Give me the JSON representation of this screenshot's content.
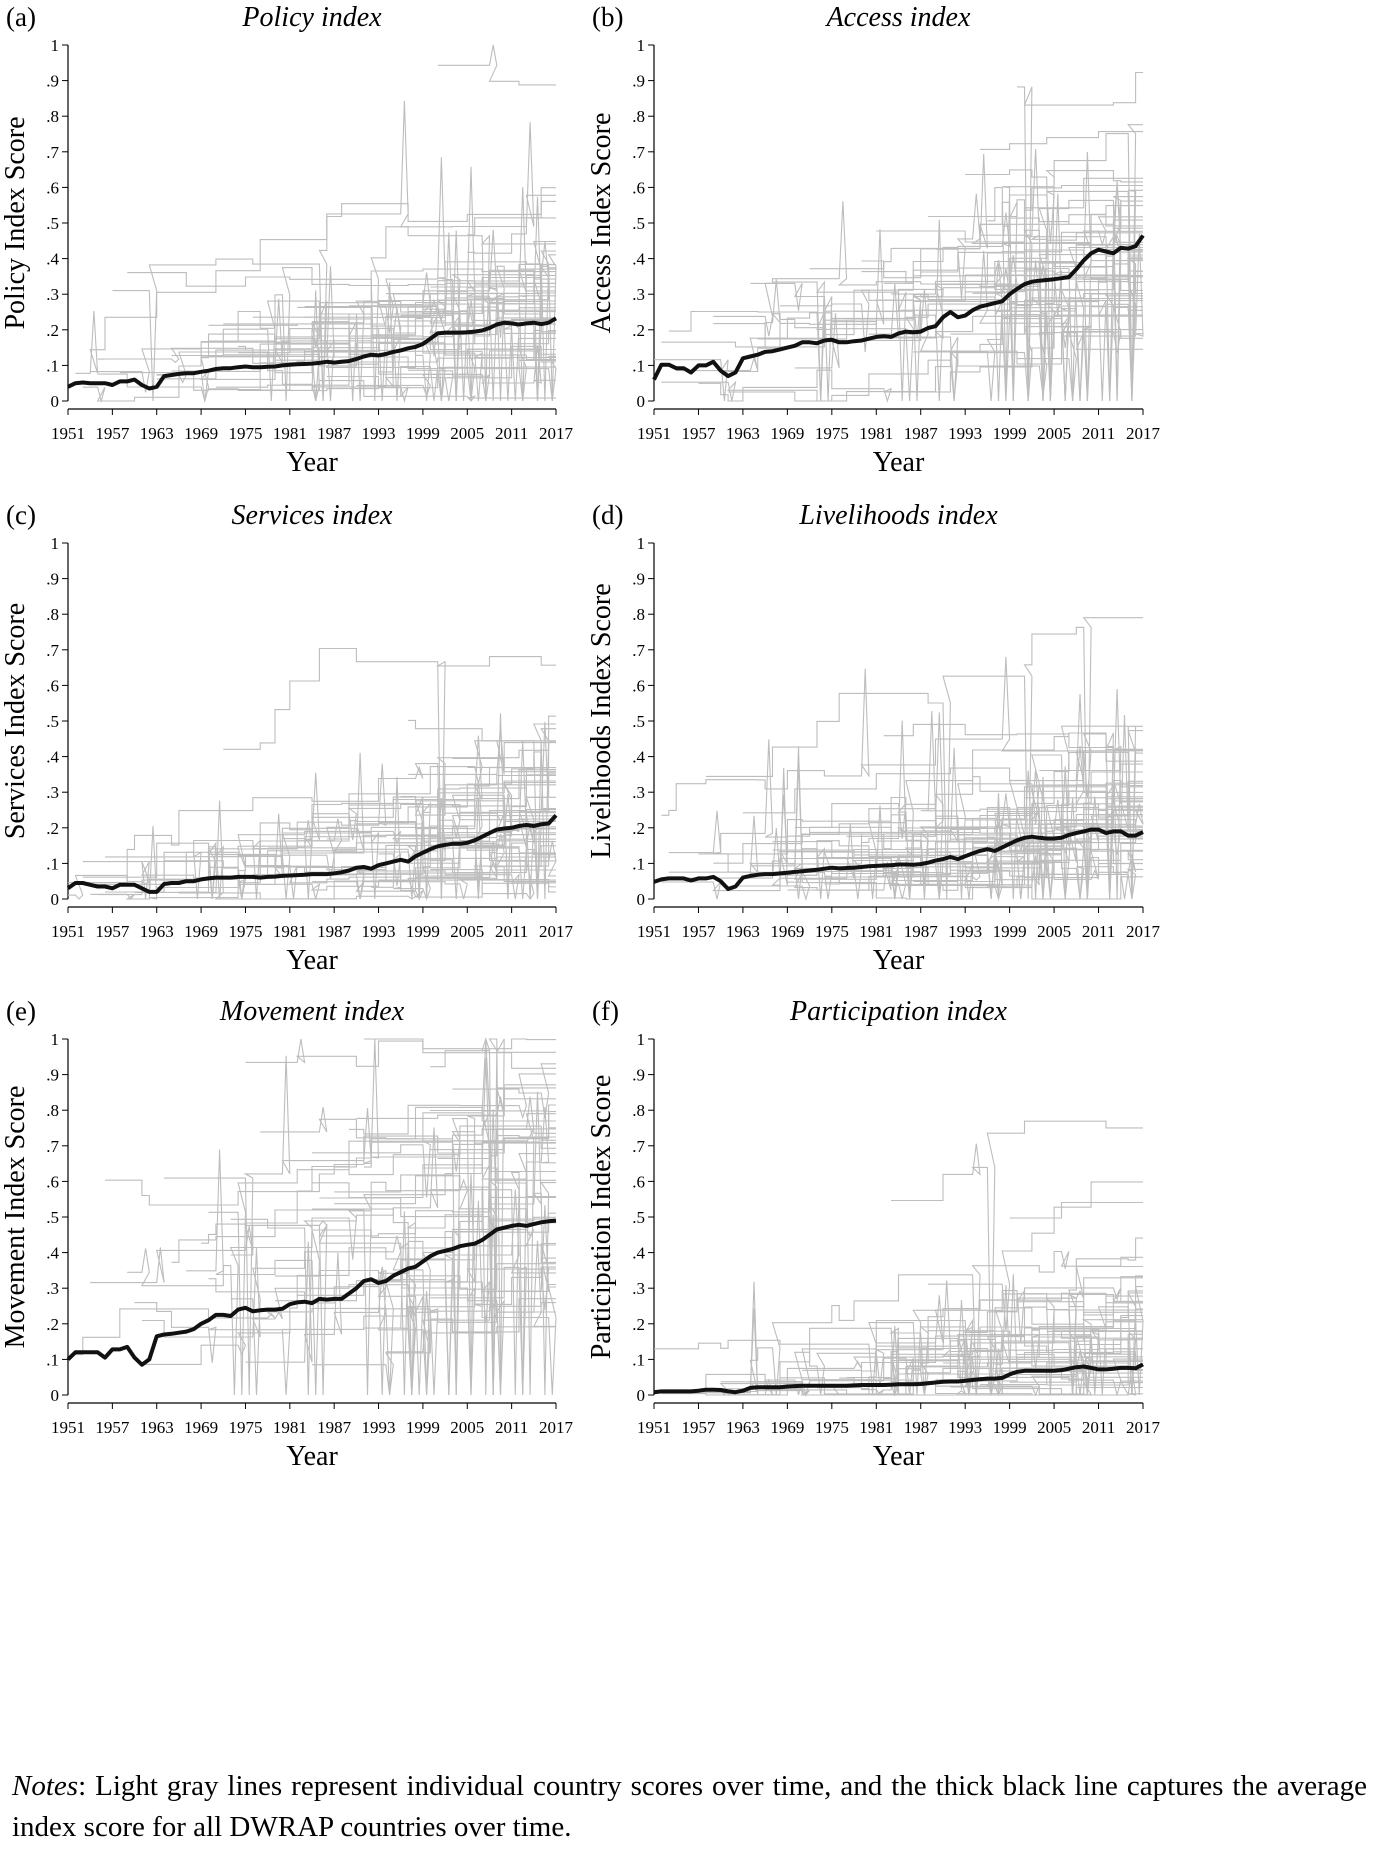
{
  "figure": {
    "x_axis_title": "Year",
    "x_ticks": [
      1951,
      1957,
      1963,
      1969,
      1975,
      1981,
      1987,
      1993,
      1999,
      2005,
      2011,
      2017
    ],
    "y_ticks": [
      "0",
      ".1",
      ".2",
      ".3",
      ".4",
      ".5",
      ".6",
      ".7",
      ".8",
      ".9",
      "1"
    ],
    "background_line_color": "#bdbdbd",
    "average_line_color": "#111111"
  },
  "notes": {
    "label": "Notes",
    "text": ": Light gray lines represent individual country scores over time, and the thick black line captures the average index score for all DWRAP countries over time."
  },
  "chart_data": [
    {
      "panel": "(a)",
      "type": "line",
      "title": "Policy index",
      "xlabel": "Year",
      "ylabel": "Policy Index Score",
      "xlim": [
        1951,
        2017
      ],
      "ylim": [
        0,
        1
      ],
      "grid": false,
      "legend": "none",
      "series": [
        {
          "x": [
            1951,
            1952,
            1953,
            1954,
            1955,
            1956,
            1957,
            1958,
            1959,
            1960,
            1961,
            1962,
            1963,
            1964,
            1965,
            1966,
            1967,
            1968,
            1969,
            1970,
            1971,
            1972,
            1973,
            1974,
            1975,
            1976,
            1977,
            1978,
            1979,
            1980,
            1981,
            1982,
            1983,
            1984,
            1985,
            1986,
            1987,
            1988,
            1989,
            1990,
            1991,
            1992,
            1993,
            1994,
            1995,
            1996,
            1997,
            1998,
            1999,
            2000,
            2001,
            2002,
            2003,
            2004,
            2005,
            2006,
            2007,
            2008,
            2009,
            2010,
            2011,
            2012,
            2013,
            2014,
            2015,
            2016,
            2017
          ],
          "values": [
            0.04,
            0.05,
            0.052,
            0.05,
            0.05,
            0.05,
            0.045,
            0.055,
            0.055,
            0.06,
            0.045,
            0.035,
            0.04,
            0.07,
            0.073,
            0.076,
            0.078,
            0.078,
            0.082,
            0.085,
            0.09,
            0.092,
            0.092,
            0.095,
            0.097,
            0.095,
            0.095,
            0.096,
            0.097,
            0.1,
            0.102,
            0.103,
            0.104,
            0.105,
            0.107,
            0.11,
            0.108,
            0.11,
            0.112,
            0.118,
            0.125,
            0.13,
            0.128,
            0.132,
            0.138,
            0.142,
            0.148,
            0.152,
            0.16,
            0.175,
            0.19,
            0.192,
            0.192,
            0.192,
            0.193,
            0.195,
            0.198,
            0.205,
            0.215,
            0.22,
            0.218,
            0.215,
            0.218,
            0.22,
            0.216,
            0.22,
            0.232
          ]
        }
      ]
    },
    {
      "panel": "(b)",
      "type": "line",
      "title": "Access index",
      "xlabel": "Year",
      "ylabel": "Access Index Score",
      "xlim": [
        1951,
        2017
      ],
      "ylim": [
        0,
        1
      ],
      "grid": false,
      "legend": "none",
      "series": [
        {
          "x": [
            1951,
            1952,
            1953,
            1954,
            1955,
            1956,
            1957,
            1958,
            1959,
            1960,
            1961,
            1962,
            1963,
            1964,
            1965,
            1966,
            1967,
            1968,
            1969,
            1970,
            1971,
            1972,
            1973,
            1974,
            1975,
            1976,
            1977,
            1978,
            1979,
            1980,
            1981,
            1982,
            1983,
            1984,
            1985,
            1986,
            1987,
            1988,
            1989,
            1990,
            1991,
            1992,
            1993,
            1994,
            1995,
            1996,
            1997,
            1998,
            1999,
            2000,
            2001,
            2002,
            2003,
            2004,
            2005,
            2006,
            2007,
            2008,
            2009,
            2010,
            2011,
            2012,
            2013,
            2014,
            2015,
            2016,
            2017
          ],
          "values": [
            0.06,
            0.102,
            0.102,
            0.092,
            0.092,
            0.08,
            0.1,
            0.1,
            0.11,
            0.085,
            0.07,
            0.08,
            0.12,
            0.125,
            0.13,
            0.138,
            0.14,
            0.145,
            0.15,
            0.155,
            0.165,
            0.165,
            0.162,
            0.17,
            0.172,
            0.165,
            0.165,
            0.168,
            0.17,
            0.175,
            0.18,
            0.182,
            0.18,
            0.19,
            0.195,
            0.193,
            0.195,
            0.205,
            0.21,
            0.235,
            0.25,
            0.235,
            0.24,
            0.255,
            0.265,
            0.27,
            0.275,
            0.28,
            0.3,
            0.315,
            0.328,
            0.335,
            0.338,
            0.34,
            0.342,
            0.345,
            0.348,
            0.37,
            0.395,
            0.415,
            0.425,
            0.42,
            0.415,
            0.43,
            0.428,
            0.435,
            0.465
          ]
        }
      ]
    },
    {
      "panel": "(c)",
      "type": "line",
      "title": "Services index",
      "xlabel": "Year",
      "ylabel": "Services Index Score",
      "xlim": [
        1951,
        2017
      ],
      "ylim": [
        0,
        1
      ],
      "grid": false,
      "legend": "none",
      "series": [
        {
          "x": [
            1951,
            1952,
            1953,
            1954,
            1955,
            1956,
            1957,
            1958,
            1959,
            1960,
            1961,
            1962,
            1963,
            1964,
            1965,
            1966,
            1967,
            1968,
            1969,
            1970,
            1971,
            1972,
            1973,
            1974,
            1975,
            1976,
            1977,
            1978,
            1979,
            1980,
            1981,
            1982,
            1983,
            1984,
            1985,
            1986,
            1987,
            1988,
            1989,
            1990,
            1991,
            1992,
            1993,
            1994,
            1995,
            1996,
            1997,
            1998,
            1999,
            2000,
            2001,
            2002,
            2003,
            2004,
            2005,
            2006,
            2007,
            2008,
            2009,
            2010,
            2011,
            2012,
            2013,
            2014,
            2015,
            2016,
            2017
          ],
          "values": [
            0.03,
            0.045,
            0.045,
            0.04,
            0.035,
            0.035,
            0.03,
            0.04,
            0.04,
            0.04,
            0.03,
            0.02,
            0.02,
            0.042,
            0.045,
            0.045,
            0.05,
            0.05,
            0.055,
            0.058,
            0.06,
            0.06,
            0.06,
            0.062,
            0.062,
            0.062,
            0.06,
            0.062,
            0.063,
            0.065,
            0.066,
            0.067,
            0.068,
            0.07,
            0.07,
            0.07,
            0.072,
            0.075,
            0.08,
            0.088,
            0.09,
            0.085,
            0.095,
            0.1,
            0.105,
            0.11,
            0.105,
            0.12,
            0.13,
            0.14,
            0.148,
            0.152,
            0.155,
            0.155,
            0.158,
            0.165,
            0.175,
            0.185,
            0.195,
            0.198,
            0.2,
            0.205,
            0.208,
            0.205,
            0.21,
            0.212,
            0.235
          ]
        }
      ]
    },
    {
      "panel": "(d)",
      "type": "line",
      "title": "Livelihoods index",
      "xlabel": "Year",
      "ylabel": "Livelihoods Index Score",
      "xlim": [
        1951,
        2017
      ],
      "ylim": [
        0,
        1
      ],
      "grid": false,
      "legend": "none",
      "series": [
        {
          "x": [
            1951,
            1952,
            1953,
            1954,
            1955,
            1956,
            1957,
            1958,
            1959,
            1960,
            1961,
            1962,
            1963,
            1964,
            1965,
            1966,
            1967,
            1968,
            1969,
            1970,
            1971,
            1972,
            1973,
            1974,
            1975,
            1976,
            1977,
            1978,
            1979,
            1980,
            1981,
            1982,
            1983,
            1984,
            1985,
            1986,
            1987,
            1988,
            1989,
            1990,
            1991,
            1992,
            1993,
            1994,
            1995,
            1996,
            1997,
            1998,
            1999,
            2000,
            2001,
            2002,
            2003,
            2004,
            2005,
            2006,
            2007,
            2008,
            2009,
            2010,
            2011,
            2012,
            2013,
            2014,
            2015,
            2016,
            2017
          ],
          "values": [
            0.048,
            0.055,
            0.058,
            0.058,
            0.058,
            0.052,
            0.058,
            0.058,
            0.062,
            0.05,
            0.028,
            0.035,
            0.06,
            0.065,
            0.068,
            0.07,
            0.07,
            0.072,
            0.074,
            0.076,
            0.078,
            0.08,
            0.082,
            0.085,
            0.088,
            0.086,
            0.087,
            0.088,
            0.09,
            0.092,
            0.093,
            0.094,
            0.095,
            0.097,
            0.097,
            0.096,
            0.098,
            0.102,
            0.108,
            0.112,
            0.118,
            0.112,
            0.12,
            0.128,
            0.135,
            0.14,
            0.135,
            0.145,
            0.155,
            0.165,
            0.172,
            0.175,
            0.172,
            0.17,
            0.17,
            0.172,
            0.18,
            0.185,
            0.19,
            0.195,
            0.195,
            0.185,
            0.19,
            0.19,
            0.178,
            0.178,
            0.188
          ]
        }
      ]
    },
    {
      "panel": "(e)",
      "type": "line",
      "title": "Movement index",
      "xlabel": "Year",
      "ylabel": "Movement Index Score",
      "xlim": [
        1951,
        2017
      ],
      "ylim": [
        0,
        1
      ],
      "grid": false,
      "legend": "none",
      "series": [
        {
          "x": [
            1951,
            1952,
            1953,
            1954,
            1955,
            1956,
            1957,
            1958,
            1959,
            1960,
            1961,
            1962,
            1963,
            1964,
            1965,
            1966,
            1967,
            1968,
            1969,
            1970,
            1971,
            1972,
            1973,
            1974,
            1975,
            1976,
            1977,
            1978,
            1979,
            1980,
            1981,
            1982,
            1983,
            1984,
            1985,
            1986,
            1987,
            1988,
            1989,
            1990,
            1991,
            1992,
            1993,
            1994,
            1995,
            1996,
            1997,
            1998,
            1999,
            2000,
            2001,
            2002,
            2003,
            2004,
            2005,
            2006,
            2007,
            2008,
            2009,
            2010,
            2011,
            2012,
            2013,
            2014,
            2015,
            2016,
            2017
          ],
          "values": [
            0.1,
            0.12,
            0.12,
            0.12,
            0.12,
            0.105,
            0.128,
            0.128,
            0.135,
            0.105,
            0.085,
            0.1,
            0.165,
            0.17,
            0.172,
            0.175,
            0.178,
            0.185,
            0.2,
            0.21,
            0.225,
            0.225,
            0.222,
            0.24,
            0.245,
            0.235,
            0.238,
            0.24,
            0.24,
            0.242,
            0.255,
            0.26,
            0.262,
            0.258,
            0.27,
            0.268,
            0.27,
            0.27,
            0.285,
            0.3,
            0.32,
            0.325,
            0.315,
            0.32,
            0.335,
            0.345,
            0.355,
            0.36,
            0.375,
            0.39,
            0.4,
            0.405,
            0.41,
            0.418,
            0.422,
            0.425,
            0.435,
            0.45,
            0.465,
            0.47,
            0.475,
            0.478,
            0.475,
            0.48,
            0.485,
            0.488,
            0.49
          ]
        }
      ]
    },
    {
      "panel": "(f)",
      "type": "line",
      "title": "Participation index",
      "xlabel": "Year",
      "ylabel": "Participation Index Score",
      "xlim": [
        1951,
        2017
      ],
      "ylim": [
        0,
        1
      ],
      "grid": false,
      "legend": "none",
      "series": [
        {
          "x": [
            1951,
            1952,
            1953,
            1954,
            1955,
            1956,
            1957,
            1958,
            1959,
            1960,
            1961,
            1962,
            1963,
            1964,
            1965,
            1966,
            1967,
            1968,
            1969,
            1970,
            1971,
            1972,
            1973,
            1974,
            1975,
            1976,
            1977,
            1978,
            1979,
            1980,
            1981,
            1982,
            1983,
            1984,
            1985,
            1986,
            1987,
            1988,
            1989,
            1990,
            1991,
            1992,
            1993,
            1994,
            1995,
            1996,
            1997,
            1998,
            1999,
            2000,
            2001,
            2002,
            2003,
            2004,
            2005,
            2006,
            2007,
            2008,
            2009,
            2010,
            2011,
            2012,
            2013,
            2014,
            2015,
            2016,
            2017
          ],
          "values": [
            0.008,
            0.01,
            0.01,
            0.01,
            0.01,
            0.01,
            0.012,
            0.015,
            0.015,
            0.014,
            0.01,
            0.008,
            0.012,
            0.02,
            0.022,
            0.022,
            0.022,
            0.022,
            0.024,
            0.025,
            0.026,
            0.026,
            0.026,
            0.026,
            0.026,
            0.026,
            0.026,
            0.027,
            0.028,
            0.028,
            0.028,
            0.028,
            0.029,
            0.03,
            0.03,
            0.03,
            0.031,
            0.033,
            0.035,
            0.037,
            0.038,
            0.038,
            0.04,
            0.042,
            0.044,
            0.046,
            0.046,
            0.048,
            0.058,
            0.065,
            0.068,
            0.068,
            0.068,
            0.068,
            0.068,
            0.07,
            0.074,
            0.078,
            0.08,
            0.076,
            0.072,
            0.072,
            0.074,
            0.076,
            0.076,
            0.075,
            0.086
          ]
        }
      ]
    }
  ]
}
